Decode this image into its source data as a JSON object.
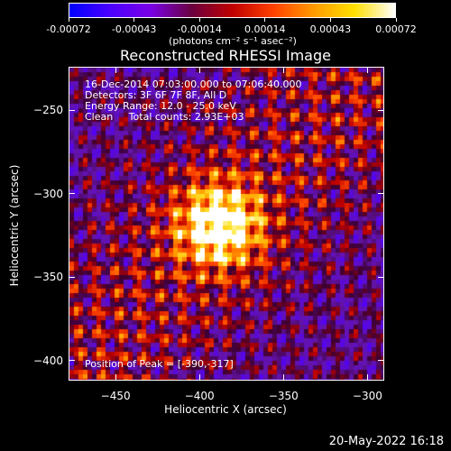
{
  "colorbar": {
    "tick_labels": [
      "-0.00072",
      "-0.00043",
      "-0.00014",
      "0.00014",
      "0.00043",
      "0.00072"
    ],
    "units": "(photons cm⁻² s⁻¹ asec⁻²)",
    "colors": [
      "#0000ff",
      "#4b00ff",
      "#7a00e6",
      "#6a0040",
      "#c00000",
      "#ff4000",
      "#ff9a00",
      "#ffe000",
      "#ffffff"
    ]
  },
  "title": "Reconstructed RHESSI Image",
  "info": {
    "line1": "16-Dec-2014 07:03:00.000 to 07:06:40.000",
    "line2": "Detectors: 3F 6F 7F 8F, All D",
    "line3": "Energy Range: 12.0 - 25.0 keV",
    "line4": "Clean     Total counts: 2.93E+03"
  },
  "peak": "Position of Peak = [-390,-317]",
  "footer_date": "20-May-2022 16:18",
  "chart_data": {
    "type": "heatmap",
    "title": "Reconstructed RHESSI Image",
    "xlabel": "Heliocentric X (arcsec)",
    "ylabel": "Heliocentric Y (arcsec)",
    "x_ticks": [
      "−450",
      "−400",
      "−350",
      "−300"
    ],
    "y_ticks": [
      "−250",
      "−300",
      "−350",
      "−400"
    ],
    "x_tick_values": [
      -450,
      -400,
      -350,
      -300
    ],
    "y_tick_values": [
      -250,
      -300,
      -350,
      -400
    ],
    "xlim": [
      -478,
      -290
    ],
    "ylim": [
      -412,
      -224
    ],
    "peak": [
      -390,
      -317
    ],
    "colorbar_range": [
      -0.00072,
      0.00072
    ]
  }
}
